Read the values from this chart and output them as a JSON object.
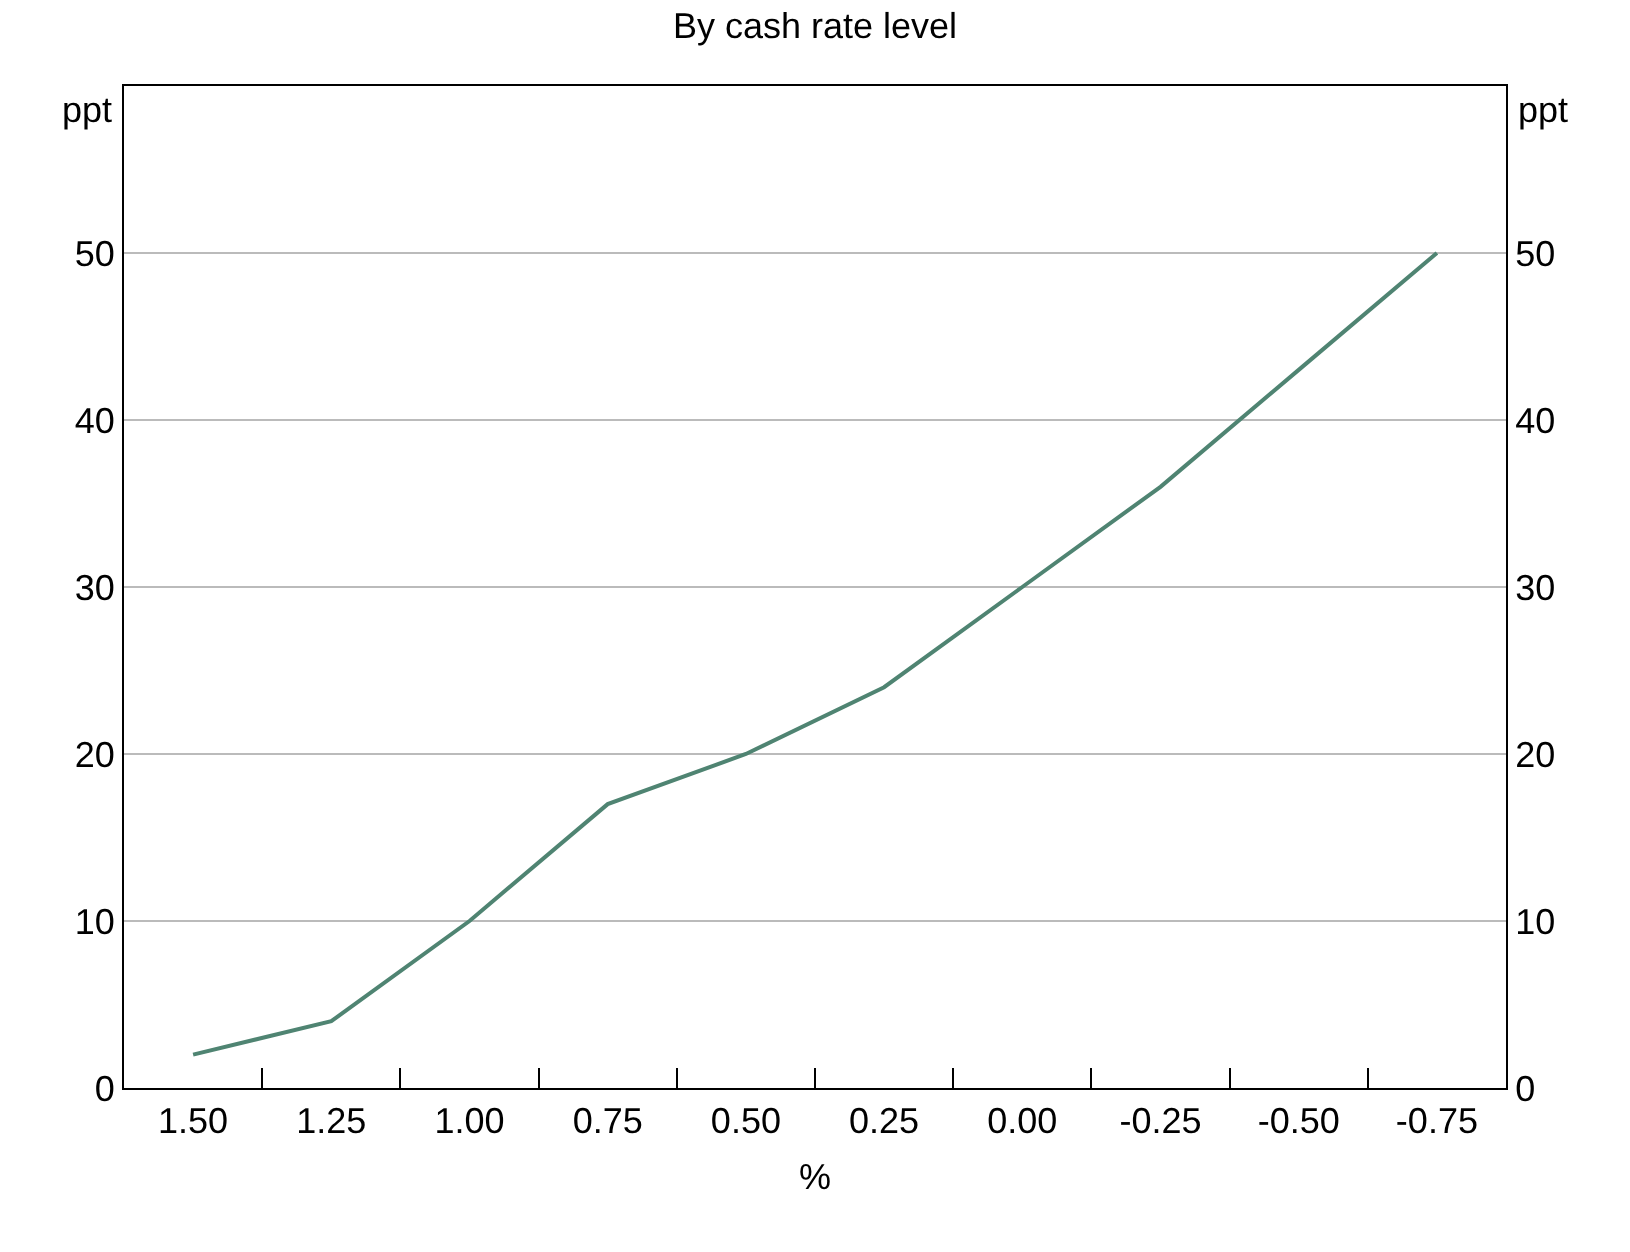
{
  "chart_data": {
    "type": "line",
    "title": "By cash rate level",
    "xlabel": "%",
    "ylabel": "ppt",
    "y2label": "ppt",
    "categories": [
      "1.50",
      "1.25",
      "1.00",
      "0.75",
      "0.50",
      "0.25",
      "0.00",
      "-0.25",
      "-0.50",
      "-0.75"
    ],
    "series": [
      {
        "color": "#4f8472",
        "values": [
          2,
          4,
          10,
          17,
          20,
          24,
          30,
          36,
          43,
          50
        ]
      }
    ],
    "ylim": [
      0,
      60
    ],
    "yticks": [
      0,
      10,
      20,
      30,
      40,
      50
    ],
    "y2lim": [
      0,
      60
    ],
    "y2ticks": [
      0,
      10,
      20,
      30,
      40,
      50
    ],
    "grid": "y",
    "marker": "none",
    "line_style": "solid"
  }
}
